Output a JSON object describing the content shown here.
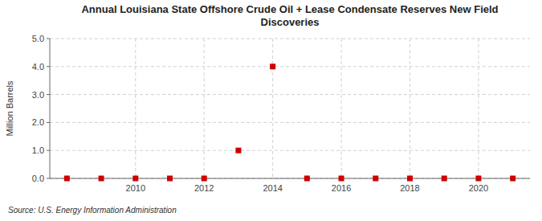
{
  "chart_data": {
    "type": "scatter",
    "title": "Annual Louisiana State Offshore Crude Oil + Lease Condensate Reserves New Field\nDiscoveries",
    "ylabel": "Million Barrels",
    "source": "Source: U.S. Energy Information Administration",
    "x": [
      2008,
      2009,
      2010,
      2011,
      2012,
      2013,
      2014,
      2015,
      2016,
      2017,
      2018,
      2019,
      2020,
      2021
    ],
    "values": [
      0.0,
      0.0,
      0.0,
      0.0,
      0.0,
      1.0,
      4.0,
      0.0,
      0.0,
      0.0,
      0.0,
      0.0,
      0.0,
      0.0
    ],
    "color": "#cc0000",
    "marker": "square",
    "xlim": [
      2007.5,
      2021.5
    ],
    "ylim": [
      0.0,
      5.0
    ],
    "xticks": [
      2010,
      2012,
      2014,
      2016,
      2018,
      2020
    ],
    "yticks": [
      {
        "value": 0.0,
        "label": "0.0"
      },
      {
        "value": 1.0,
        "label": "1.0"
      },
      {
        "value": 2.0,
        "label": "2.0"
      },
      {
        "value": 3.0,
        "label": "3.0"
      },
      {
        "value": 4.0,
        "label": "4.0"
      },
      {
        "value": 5.0,
        "label": "5.0"
      }
    ],
    "grid": true
  }
}
